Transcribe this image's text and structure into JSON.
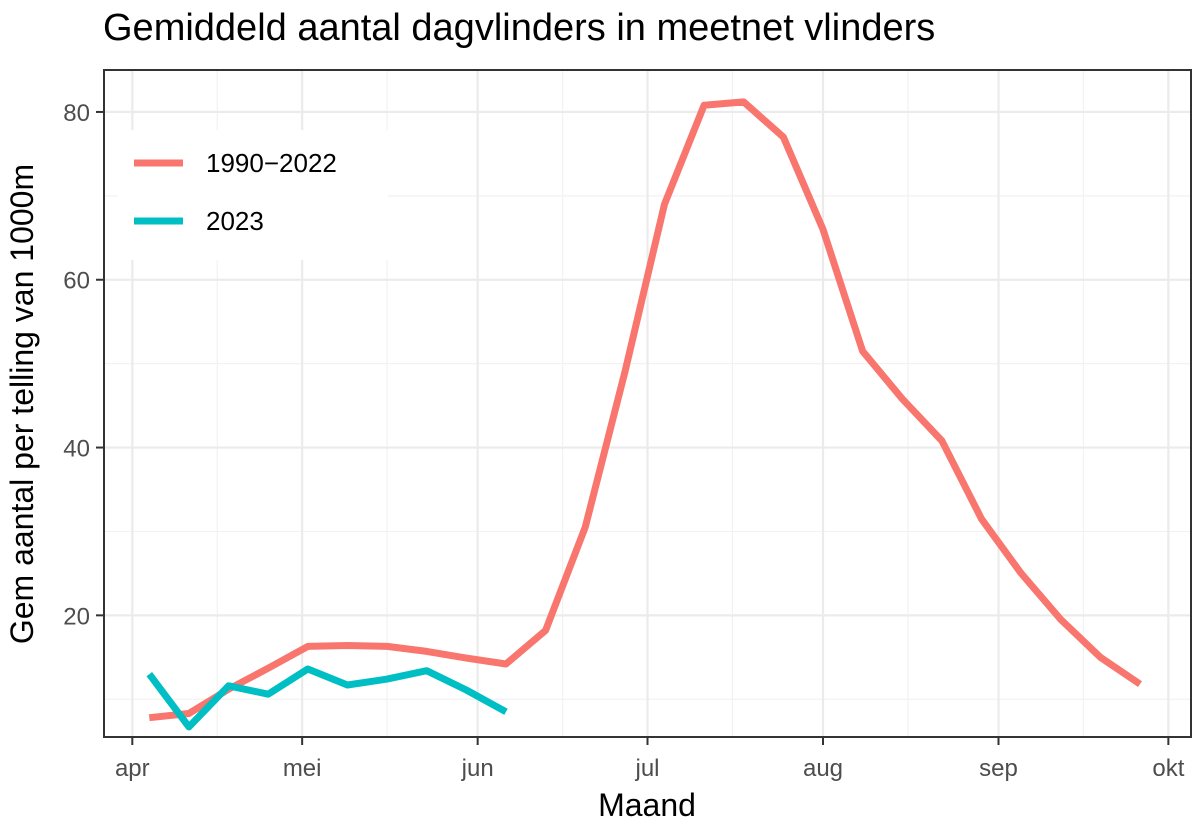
{
  "chart_data": {
    "type": "line",
    "title": "Gemiddeld aantal dagvlinders in meetnet vlinders",
    "xlabel": "Maand",
    "ylabel": "Gem aantal per telling van 1000m",
    "x_ticks": [
      "apr",
      "mei",
      "jun",
      "jul",
      "aug",
      "sep",
      "okt"
    ],
    "y_ticks": [
      20,
      40,
      60,
      80
    ],
    "ylim": [
      5.5,
      85
    ],
    "xlim": [
      "2023-03-27",
      "2023-10-05"
    ],
    "grid": true,
    "legend_position": "top-left",
    "series": [
      {
        "name": "1990−2022",
        "color": "#F8766D",
        "points": [
          [
            "2023-04-04",
            7.8
          ],
          [
            "2023-04-11",
            8.3
          ],
          [
            "2023-04-18",
            11.2
          ],
          [
            "2023-04-25",
            13.7
          ],
          [
            "2023-05-02",
            16.3
          ],
          [
            "2023-05-09",
            16.4
          ],
          [
            "2023-05-16",
            16.3
          ],
          [
            "2023-05-23",
            15.7
          ],
          [
            "2023-05-30",
            14.9
          ],
          [
            "2023-06-06",
            14.2
          ],
          [
            "2023-06-13",
            18.2
          ],
          [
            "2023-06-20",
            30.5
          ],
          [
            "2023-06-27",
            49.0
          ],
          [
            "2023-07-04",
            69.0
          ],
          [
            "2023-07-11",
            80.8
          ],
          [
            "2023-07-18",
            81.2
          ],
          [
            "2023-07-25",
            77.0
          ],
          [
            "2023-08-01",
            66.0
          ],
          [
            "2023-08-08",
            51.5
          ],
          [
            "2023-08-15",
            45.8
          ],
          [
            "2023-08-22",
            40.8
          ],
          [
            "2023-08-29",
            31.5
          ],
          [
            "2023-09-05",
            25.0
          ],
          [
            "2023-09-12",
            19.5
          ],
          [
            "2023-09-19",
            15.0
          ],
          [
            "2023-09-26",
            11.8
          ]
        ]
      },
      {
        "name": "2023",
        "color": "#00BFC4",
        "points": [
          [
            "2023-04-04",
            13.0
          ],
          [
            "2023-04-11",
            6.7
          ],
          [
            "2023-04-18",
            11.6
          ],
          [
            "2023-04-25",
            10.6
          ],
          [
            "2023-05-02",
            13.6
          ],
          [
            "2023-05-09",
            11.7
          ],
          [
            "2023-05-16",
            12.4
          ],
          [
            "2023-05-23",
            13.4
          ],
          [
            "2023-05-30",
            11.1
          ],
          [
            "2023-06-06",
            8.5
          ]
        ]
      }
    ]
  }
}
